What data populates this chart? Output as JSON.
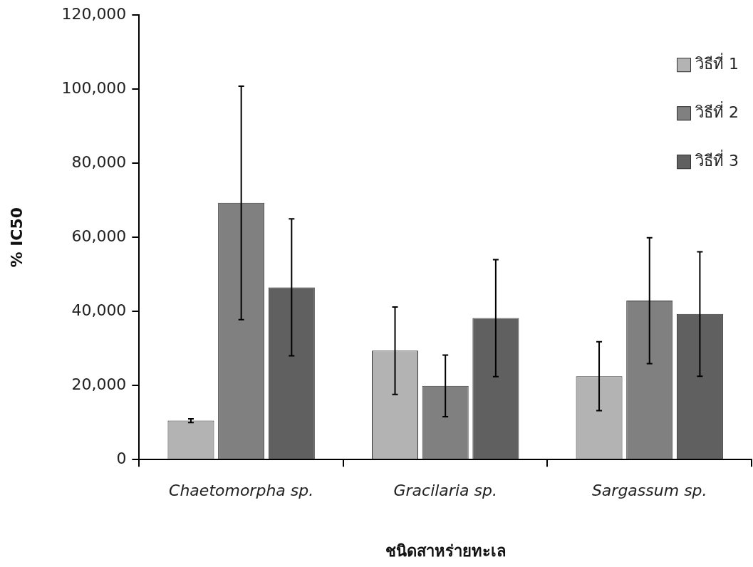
{
  "chart_data": {
    "type": "bar",
    "xlabel": "ชนิดสาหร่ายทะเล",
    "ylabel": "% IC50",
    "categories": [
      "Chaetomorpha sp.",
      "Gracilaria sp.",
      "Sargassum sp."
    ],
    "series": [
      {
        "name": "วิธีที่ 1",
        "color": "#b3b3b3",
        "values": [
          10500,
          29400,
          22500
        ],
        "errors": [
          500,
          11800,
          9300
        ]
      },
      {
        "name": "วิธีที่ 2",
        "color": "#808080",
        "values": [
          69300,
          19900,
          42900
        ],
        "errors": [
          31500,
          8300,
          17000
        ]
      },
      {
        "name": "วิธีที่ 3",
        "color": "#606060",
        "values": [
          46500,
          38200,
          39300
        ],
        "errors": [
          18500,
          15800,
          16800
        ]
      }
    ],
    "ylim": [
      0,
      120000
    ],
    "yticks": [
      0,
      {
        "value": 20000,
        "label": "20,000"
      },
      {
        "value": 40000,
        "label": "40,000"
      },
      {
        "value": 60000,
        "label": "60,000"
      },
      {
        "value": 80000,
        "label": "80,000"
      },
      {
        "value": 100000,
        "label": "100,000"
      },
      {
        "value": 120000,
        "label": "120,000"
      }
    ],
    "grid": false,
    "legend": "top right"
  }
}
